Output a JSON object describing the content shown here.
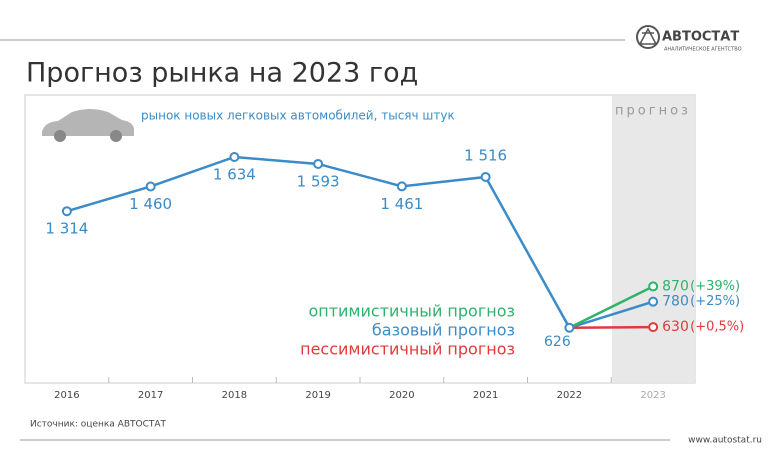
{
  "chart_data": {
    "type": "line",
    "title": "Прогноз рынка на 2023 год",
    "subtitle": "рынок новых легковых автомобилей, тысяч штук",
    "forecast_label": "прогноз",
    "source": "Источник: оценка АВТОСТАТ",
    "brand": "АВТОСТАТ",
    "brand_tagline": "АНАЛИТИЧЕСКОЕ АГЕНТСТВО",
    "url": "www.autostat.ru",
    "categories": [
      "2016",
      "2017",
      "2018",
      "2019",
      "2020",
      "2021",
      "2022",
      "2023"
    ],
    "ylim": [
      300,
      2000
    ],
    "series": [
      {
        "name": "оптимистичный прогноз",
        "color": "#2db36b",
        "values": [
          null,
          null,
          null,
          null,
          null,
          null,
          626,
          870
        ],
        "value_labels": [
          null,
          null,
          null,
          null,
          null,
          null,
          null,
          "870"
        ],
        "change_label": "(+39%)"
      },
      {
        "name": "базовый прогноз",
        "color": "#3a8cc8",
        "values": [
          1314,
          1460,
          1634,
          1593,
          1461,
          1516,
          626,
          780
        ],
        "value_labels": [
          "1 314",
          "1 460",
          "1 634",
          "1 593",
          "1 461",
          "1 516",
          "626",
          "780"
        ],
        "change_label": "(+25%)"
      },
      {
        "name": "пессимистичный прогноз",
        "color": "#e03a3a",
        "values": [
          null,
          null,
          null,
          null,
          null,
          null,
          626,
          630
        ],
        "value_labels": [
          null,
          null,
          null,
          null,
          null,
          null,
          null,
          "630"
        ],
        "change_label": "(+0,5%)"
      }
    ]
  }
}
